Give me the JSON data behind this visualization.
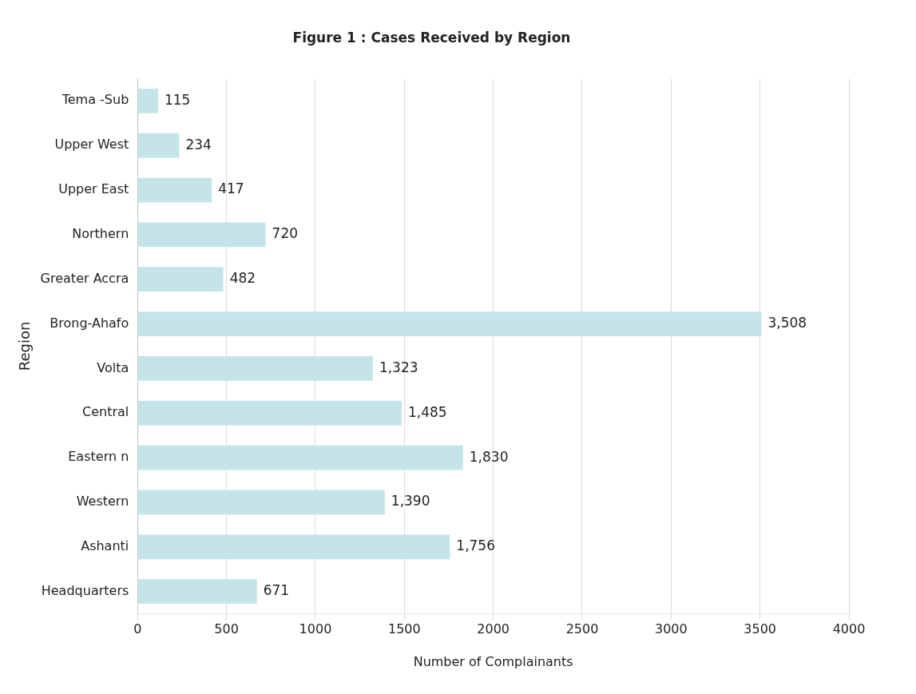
{
  "chart_data": {
    "type": "bar",
    "orientation": "horizontal",
    "title": "Figure 1 : Cases Received by Region",
    "xlabel": "Number of Complainants",
    "ylabel": "Region",
    "categories": [
      "Tema -Sub",
      "Upper West",
      "Upper East",
      "Northern",
      "Greater Accra",
      "Brong-Ahafo",
      "Volta",
      "Central",
      "Eastern n",
      "Western",
      "Ashanti",
      "Headquarters"
    ],
    "values": [
      115,
      234,
      417,
      720,
      482,
      3508,
      1323,
      1485,
      1830,
      1390,
      1756,
      671
    ],
    "value_labels": [
      "115",
      "234",
      "417",
      "720",
      "482",
      "3,508",
      "1,323",
      "1,485",
      "1,830",
      "1,390",
      "1,756",
      "671"
    ],
    "color": "#c4e4ea",
    "xlim": [
      0,
      4000
    ],
    "xticks": [
      0,
      500,
      1000,
      1500,
      2000,
      2500,
      3000,
      3500,
      4000
    ],
    "grid": "x"
  }
}
